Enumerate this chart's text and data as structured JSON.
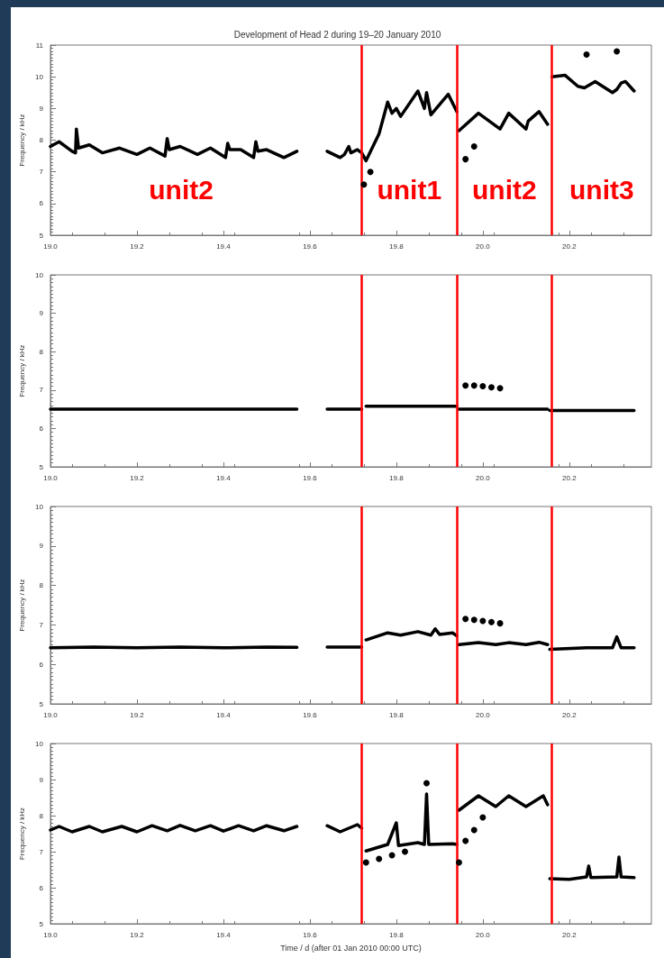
{
  "chart_data": [
    {
      "type": "line",
      "title": "Development of Head 2 during 19–20 January 2010",
      "ylabel": "Frequency / kHz",
      "xlim": [
        19.0,
        20.39
      ],
      "ylim": [
        5,
        11
      ],
      "xticks": [
        {
          "value": 19.0,
          "label": "19.0"
        },
        {
          "value": 19.2,
          "label": "19.2"
        },
        {
          "value": 19.4,
          "label": "19.4"
        },
        {
          "value": 19.6,
          "label": "19.6"
        },
        {
          "value": 19.8,
          "label": "19.8"
        },
        {
          "value": 20.0,
          "label": "20.0"
        },
        {
          "value": 20.2,
          "label": "20.2"
        }
      ],
      "yticks": [
        5,
        6,
        7,
        8,
        9,
        10,
        11
      ],
      "series": [
        {
          "type": "line",
          "color": "#000000",
          "x": [
            19.0,
            19.02,
            19.05,
            19.058,
            19.06,
            19.065,
            19.09,
            19.12,
            19.16,
            19.2,
            19.23,
            19.265,
            19.27,
            19.275,
            19.3,
            19.34,
            19.37,
            19.405,
            19.41,
            19.415,
            19.44,
            19.47,
            19.475,
            19.48,
            19.5,
            19.54,
            19.57,
            19.6,
            19.64,
            19.67,
            19.68,
            19.69,
            19.695,
            19.71,
            19.72,
            19.73,
            19.76,
            19.78,
            19.79,
            19.8,
            19.81,
            19.85,
            19.865,
            19.87,
            19.88,
            19.92,
            19.94,
            19.942,
            19.945,
            19.99,
            20.04,
            20.06,
            20.1,
            20.105,
            20.13,
            20.15,
            20.155,
            20.16,
            20.19,
            20.22,
            20.235,
            20.26,
            20.3,
            20.31,
            20.32,
            20.33,
            20.35
          ],
          "values": [
            7.8,
            7.95,
            7.65,
            7.6,
            8.35,
            7.75,
            7.85,
            7.6,
            7.75,
            7.55,
            7.75,
            7.5,
            8.05,
            7.7,
            7.8,
            7.55,
            7.75,
            7.45,
            7.9,
            7.7,
            7.7,
            7.45,
            7.95,
            7.65,
            7.7,
            7.45,
            7.65,
            null,
            7.65,
            7.45,
            7.55,
            7.8,
            7.6,
            7.7,
            7.6,
            7.35,
            8.2,
            9.2,
            8.85,
            9.0,
            8.75,
            9.55,
            9.0,
            9.5,
            8.8,
            9.45,
            8.9,
            null,
            8.3,
            8.85,
            8.35,
            8.85,
            8.35,
            8.6,
            8.9,
            8.5,
            null,
            10.0,
            10.05,
            9.7,
            9.65,
            9.85,
            9.5,
            9.6,
            9.8,
            9.85,
            9.55
          ]
        },
        {
          "type": "scatter",
          "color": "#000000",
          "x": [
            19.725,
            19.74,
            19.96,
            19.98,
            20.24,
            20.31
          ],
          "values": [
            6.6,
            7.0,
            7.4,
            7.8,
            10.7,
            10.8
          ]
        }
      ],
      "ref_lines": [
        {
          "axis": "x",
          "value": 19.72,
          "color": "#ff0000"
        },
        {
          "axis": "x",
          "value": 19.94,
          "color": "#ff0000"
        },
        {
          "axis": "x",
          "value": 20.16,
          "color": "#ff0000"
        }
      ],
      "annotations": [
        "unit2",
        "unit1",
        "unit2",
        "unit3"
      ]
    },
    {
      "type": "line",
      "ylabel": "Frequency / kHz",
      "xlim": [
        19.0,
        20.39
      ],
      "ylim": [
        5,
        10
      ],
      "xticks": [
        {
          "value": 19.0,
          "label": "19.0"
        },
        {
          "value": 19.2,
          "label": "19.2"
        },
        {
          "value": 19.4,
          "label": "19.4"
        },
        {
          "value": 19.6,
          "label": "19.6"
        },
        {
          "value": 19.8,
          "label": "19.8"
        },
        {
          "value": 20.0,
          "label": "20.0"
        },
        {
          "value": 20.2,
          "label": "20.2"
        }
      ],
      "yticks": [
        5,
        6,
        7,
        8,
        9,
        10
      ],
      "series": [
        {
          "type": "line",
          "color": "#000000",
          "x": [
            19.0,
            19.57,
            19.6,
            19.64,
            19.72,
            19.725,
            19.73,
            19.94,
            19.942,
            19.945,
            20.15,
            20.152,
            20.155,
            20.35
          ],
          "values": [
            6.5,
            6.5,
            null,
            6.5,
            6.5,
            null,
            6.58,
            6.58,
            null,
            6.5,
            6.5,
            null,
            6.47,
            6.47
          ]
        },
        {
          "type": "scatter",
          "color": "#000000",
          "x": [
            19.96,
            19.98,
            20.0,
            20.02,
            20.04
          ],
          "values": [
            7.12,
            7.12,
            7.1,
            7.07,
            7.05
          ]
        }
      ],
      "ref_lines": [
        {
          "axis": "x",
          "value": 19.72,
          "color": "#ff0000"
        },
        {
          "axis": "x",
          "value": 19.94,
          "color": "#ff0000"
        },
        {
          "axis": "x",
          "value": 20.16,
          "color": "#ff0000"
        }
      ]
    },
    {
      "type": "line",
      "ylabel": "Frequency / kHz",
      "xlim": [
        19.0,
        20.39
      ],
      "ylim": [
        5,
        10
      ],
      "xticks": [
        {
          "value": 19.0,
          "label": "19.0"
        },
        {
          "value": 19.2,
          "label": "19.2"
        },
        {
          "value": 19.4,
          "label": "19.4"
        },
        {
          "value": 19.6,
          "label": "19.6"
        },
        {
          "value": 19.8,
          "label": "19.8"
        },
        {
          "value": 20.0,
          "label": "20.0"
        },
        {
          "value": 20.2,
          "label": "20.2"
        }
      ],
      "yticks": [
        5,
        6,
        7,
        8,
        9,
        10
      ],
      "series": [
        {
          "type": "line",
          "color": "#000000",
          "x": [
            19.0,
            19.1,
            19.2,
            19.3,
            19.4,
            19.5,
            19.57,
            19.6,
            19.64,
            19.72,
            19.725,
            19.73,
            19.78,
            19.81,
            19.85,
            19.88,
            19.89,
            19.9,
            19.93,
            19.94,
            19.942,
            19.945,
            19.99,
            20.03,
            20.06,
            20.1,
            20.13,
            20.15,
            20.152,
            20.155,
            20.24,
            20.3,
            20.31,
            20.32,
            20.35
          ],
          "values": [
            6.42,
            6.44,
            6.42,
            6.44,
            6.42,
            6.44,
            6.43,
            null,
            6.44,
            6.44,
            null,
            6.62,
            6.8,
            6.74,
            6.83,
            6.74,
            6.9,
            6.76,
            6.8,
            6.72,
            null,
            6.5,
            6.55,
            6.5,
            6.55,
            6.5,
            6.56,
            6.5,
            null,
            6.38,
            6.42,
            6.42,
            6.7,
            6.42,
            6.42
          ]
        },
        {
          "type": "scatter",
          "color": "#000000",
          "x": [
            19.96,
            19.98,
            20.0,
            20.02,
            20.04
          ],
          "values": [
            7.15,
            7.13,
            7.1,
            7.07,
            7.04
          ]
        }
      ],
      "ref_lines": [
        {
          "axis": "x",
          "value": 19.72,
          "color": "#ff0000"
        },
        {
          "axis": "x",
          "value": 19.94,
          "color": "#ff0000"
        },
        {
          "axis": "x",
          "value": 20.16,
          "color": "#ff0000"
        }
      ]
    },
    {
      "type": "line",
      "xlabel": "Time / d (after 01 Jan 2010 00:00 UTC)",
      "ylabel": "Frequency / kHz",
      "xlim": [
        19.0,
        20.39
      ],
      "ylim": [
        5,
        10
      ],
      "xticks": [
        {
          "value": 19.0,
          "label": "19.0"
        },
        {
          "value": 19.2,
          "label": "19.2"
        },
        {
          "value": 19.4,
          "label": "19.4"
        },
        {
          "value": 19.6,
          "label": "19.6"
        },
        {
          "value": 19.8,
          "label": "19.8"
        },
        {
          "value": 20.0,
          "label": "20.0"
        },
        {
          "value": 20.2,
          "label": "20.2"
        }
      ],
      "yticks": [
        5,
        6,
        7,
        8,
        9,
        10
      ],
      "series": [
        {
          "type": "line",
          "color": "#000000",
          "x": [
            19.0,
            19.02,
            19.05,
            19.09,
            19.12,
            19.165,
            19.2,
            19.235,
            19.27,
            19.3,
            19.335,
            19.37,
            19.4,
            19.435,
            19.47,
            19.5,
            19.54,
            19.57,
            19.6,
            19.64,
            19.67,
            19.71,
            19.72,
            19.725,
            19.73,
            19.78,
            19.8,
            19.805,
            19.85,
            19.865,
            19.87,
            19.875,
            19.93,
            19.94,
            19.942,
            19.945,
            19.99,
            20.03,
            20.06,
            20.1,
            20.14,
            20.15,
            20.152,
            20.155,
            20.2,
            20.24,
            20.245,
            20.25,
            20.31,
            20.315,
            20.32,
            20.35
          ],
          "values": [
            7.6,
            7.7,
            7.55,
            7.7,
            7.55,
            7.7,
            7.55,
            7.72,
            7.58,
            7.73,
            7.58,
            7.72,
            7.57,
            7.72,
            7.58,
            7.72,
            7.58,
            7.7,
            null,
            7.72,
            7.55,
            7.75,
            7.65,
            null,
            7.02,
            7.2,
            7.8,
            7.17,
            7.25,
            7.2,
            8.6,
            7.2,
            7.22,
            7.2,
            null,
            8.15,
            8.55,
            8.25,
            8.55,
            8.25,
            8.55,
            8.3,
            null,
            6.25,
            6.23,
            6.3,
            6.6,
            6.28,
            6.3,
            6.85,
            6.3,
            6.28
          ]
        },
        {
          "type": "scatter",
          "color": "#000000",
          "x": [
            19.73,
            19.76,
            19.79,
            19.82,
            19.87,
            19.945,
            19.96,
            19.98,
            20.0
          ],
          "values": [
            6.7,
            6.8,
            6.9,
            7.0,
            8.9,
            6.7,
            7.3,
            7.6,
            7.95
          ]
        }
      ],
      "ref_lines": [
        {
          "axis": "x",
          "value": 19.72,
          "color": "#ff0000"
        },
        {
          "axis": "x",
          "value": 19.94,
          "color": "#ff0000"
        },
        {
          "axis": "x",
          "value": 20.16,
          "color": "#ff0000"
        }
      ]
    }
  ]
}
